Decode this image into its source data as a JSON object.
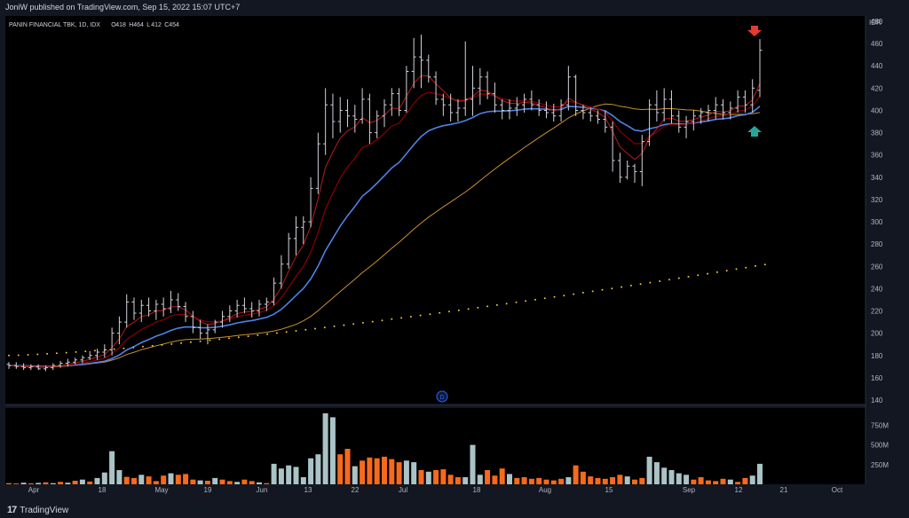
{
  "header": {
    "published": "JoniW published on TradingView.com, Sep 15, 2022 15:07 UTC+7"
  },
  "legend": {
    "symbol": "PANIN FINANCIAL TBK, 1D, IDX",
    "ohlc": [
      {
        "k": "O",
        "v": "418"
      },
      {
        "k": "H",
        "v": "464"
      },
      {
        "k": "L",
        "v": "412"
      },
      {
        "k": "C",
        "v": "454"
      }
    ]
  },
  "footer": {
    "brand": "TradingView",
    "logo": "17"
  },
  "colors": {
    "background": "#000000",
    "frame": "#131722",
    "bar": "#d1d4dc",
    "ema_fast": "#b71c1c",
    "ema_mid": "#8b0000",
    "ema_blue": "#4e82e8",
    "ma_orange": "#c8912e",
    "ma_dotted": "#f0c040",
    "vol_up": "#a9c3c7",
    "vol_down": "#f56a1c",
    "arrow_red": "#e53935",
    "arrow_green": "#26a69a"
  },
  "marker": {
    "label": "D"
  },
  "chart_data": {
    "type": "ohlc",
    "currency": "IDR",
    "y_ticks": [
      "480",
      "460",
      "440",
      "420",
      "400",
      "380",
      "360",
      "340",
      "320",
      "300",
      "280",
      "260",
      "240",
      "220",
      "200",
      "180",
      "160",
      "140"
    ],
    "ylim": [
      140,
      480
    ],
    "volume_ticks": [
      "750M",
      "500M",
      "250M"
    ],
    "volume_ylim": [
      0,
      900
    ],
    "x_ticks": [
      "Apr",
      "18",
      "May",
      "19",
      "Jun",
      "13",
      "22",
      "Jul",
      "18",
      "Aug",
      "15",
      "Sep",
      "12",
      "21",
      "Oct"
    ],
    "annotations": [
      {
        "type": "arrow-down",
        "color": "red",
        "near": "last bar high"
      },
      {
        "type": "arrow-up",
        "color": "green",
        "near": "moving averages"
      }
    ],
    "ohlc": [
      [
        172,
        174,
        168,
        171
      ],
      [
        171,
        174,
        168,
        170
      ],
      [
        170,
        173,
        167,
        169
      ],
      [
        169,
        172,
        167,
        170
      ],
      [
        170,
        172,
        167,
        168
      ],
      [
        168,
        171,
        166,
        169
      ],
      [
        169,
        173,
        167,
        171
      ],
      [
        171,
        175,
        169,
        173
      ],
      [
        173,
        177,
        170,
        174
      ],
      [
        174,
        178,
        172,
        176
      ],
      [
        176,
        180,
        173,
        178
      ],
      [
        178,
        184,
        176,
        180
      ],
      [
        180,
        186,
        176,
        183
      ],
      [
        183,
        190,
        178,
        185
      ],
      [
        185,
        205,
        180,
        200
      ],
      [
        200,
        215,
        190,
        210
      ],
      [
        210,
        235,
        205,
        228
      ],
      [
        228,
        232,
        212,
        218
      ],
      [
        218,
        230,
        210,
        225
      ],
      [
        225,
        232,
        215,
        220
      ],
      [
        220,
        230,
        212,
        226
      ],
      [
        226,
        232,
        215,
        222
      ],
      [
        222,
        238,
        218,
        230
      ],
      [
        230,
        236,
        220,
        224
      ],
      [
        224,
        228,
        210,
        215
      ],
      [
        215,
        220,
        200,
        205
      ],
      [
        205,
        212,
        195,
        200
      ],
      [
        200,
        208,
        190,
        203
      ],
      [
        203,
        212,
        200,
        210
      ],
      [
        210,
        220,
        205,
        215
      ],
      [
        215,
        225,
        210,
        220
      ],
      [
        220,
        230,
        214,
        225
      ],
      [
        225,
        232,
        218,
        222
      ],
      [
        222,
        228,
        214,
        220
      ],
      [
        220,
        230,
        215,
        226
      ],
      [
        226,
        232,
        220,
        228
      ],
      [
        228,
        250,
        225,
        245
      ],
      [
        245,
        270,
        240,
        262
      ],
      [
        262,
        290,
        258,
        285
      ],
      [
        285,
        305,
        270,
        295
      ],
      [
        295,
        305,
        280,
        300
      ],
      [
        300,
        340,
        295,
        330
      ],
      [
        330,
        380,
        325,
        370
      ],
      [
        370,
        420,
        360,
        405
      ],
      [
        405,
        415,
        375,
        390
      ],
      [
        390,
        412,
        380,
        400
      ],
      [
        400,
        410,
        385,
        395
      ],
      [
        395,
        405,
        380,
        392
      ],
      [
        392,
        420,
        388,
        410
      ],
      [
        410,
        415,
        370,
        380
      ],
      [
        380,
        400,
        375,
        395
      ],
      [
        395,
        410,
        385,
        405
      ],
      [
        405,
        420,
        395,
        415
      ],
      [
        415,
        420,
        395,
        400
      ],
      [
        400,
        440,
        398,
        435
      ],
      [
        435,
        465,
        420,
        448
      ],
      [
        448,
        468,
        420,
        445
      ],
      [
        445,
        450,
        425,
        430
      ],
      [
        430,
        435,
        405,
        410
      ],
      [
        410,
        415,
        395,
        405
      ],
      [
        405,
        415,
        390,
        398
      ],
      [
        398,
        410,
        390,
        402
      ],
      [
        402,
        462,
        395,
        410
      ],
      [
        410,
        440,
        395,
        420
      ],
      [
        420,
        438,
        405,
        430
      ],
      [
        430,
        435,
        410,
        415
      ],
      [
        415,
        425,
        398,
        405
      ],
      [
        405,
        410,
        392,
        400
      ],
      [
        400,
        410,
        392,
        402
      ],
      [
        402,
        412,
        395,
        405
      ],
      [
        405,
        415,
        398,
        410
      ],
      [
        410,
        418,
        400,
        405
      ],
      [
        405,
        410,
        395,
        400
      ],
      [
        400,
        408,
        393,
        398
      ],
      [
        398,
        406,
        390,
        395
      ],
      [
        395,
        410,
        390,
        405
      ],
      [
        405,
        440,
        400,
        430
      ],
      [
        430,
        432,
        395,
        400
      ],
      [
        400,
        405,
        392,
        398
      ],
      [
        398,
        402,
        390,
        395
      ],
      [
        395,
        400,
        388,
        392
      ],
      [
        392,
        400,
        380,
        385
      ],
      [
        385,
        390,
        345,
        355
      ],
      [
        355,
        362,
        335,
        340
      ],
      [
        340,
        355,
        338,
        350
      ],
      [
        350,
        352,
        335,
        345
      ],
      [
        345,
        378,
        332,
        372
      ],
      [
        372,
        410,
        368,
        405
      ],
      [
        405,
        418,
        390,
        398
      ],
      [
        398,
        420,
        390,
        410
      ],
      [
        410,
        418,
        388,
        395
      ],
      [
        395,
        400,
        380,
        385
      ],
      [
        385,
        395,
        375,
        390
      ],
      [
        390,
        400,
        382,
        395
      ],
      [
        395,
        402,
        388,
        398
      ],
      [
        398,
        405,
        390,
        400
      ],
      [
        400,
        412,
        392,
        405
      ],
      [
        405,
        410,
        392,
        398
      ],
      [
        398,
        408,
        392,
        402
      ],
      [
        402,
        418,
        398,
        412
      ],
      [
        412,
        418,
        398,
        405
      ],
      [
        405,
        428,
        398,
        420
      ],
      [
        418,
        464,
        412,
        454
      ]
    ],
    "volume": [
      [
        15,
        "down"
      ],
      [
        10,
        "down"
      ],
      [
        20,
        "up"
      ],
      [
        12,
        "down"
      ],
      [
        18,
        "up"
      ],
      [
        25,
        "down"
      ],
      [
        15,
        "up"
      ],
      [
        30,
        "down"
      ],
      [
        20,
        "up"
      ],
      [
        45,
        "down"
      ],
      [
        60,
        "up"
      ],
      [
        35,
        "down"
      ],
      [
        80,
        "up"
      ],
      [
        150,
        "up"
      ],
      [
        420,
        "up"
      ],
      [
        180,
        "up"
      ],
      [
        95,
        "down"
      ],
      [
        80,
        "down"
      ],
      [
        120,
        "up"
      ],
      [
        100,
        "down"
      ],
      [
        40,
        "down"
      ],
      [
        110,
        "down"
      ],
      [
        140,
        "up"
      ],
      [
        120,
        "down"
      ],
      [
        130,
        "down"
      ],
      [
        60,
        "down"
      ],
      [
        50,
        "up"
      ],
      [
        45,
        "down"
      ],
      [
        80,
        "up"
      ],
      [
        60,
        "down"
      ],
      [
        40,
        "down"
      ],
      [
        30,
        "up"
      ],
      [
        60,
        "down"
      ],
      [
        40,
        "down"
      ],
      [
        25,
        "up"
      ],
      [
        15,
        "down"
      ],
      [
        260,
        "up"
      ],
      [
        200,
        "up"
      ],
      [
        240,
        "up"
      ],
      [
        220,
        "up"
      ],
      [
        90,
        "up"
      ],
      [
        330,
        "up"
      ],
      [
        380,
        "up"
      ],
      [
        900,
        "up"
      ],
      [
        850,
        "up"
      ],
      [
        380,
        "down"
      ],
      [
        450,
        "down"
      ],
      [
        230,
        "up"
      ],
      [
        300,
        "down"
      ],
      [
        340,
        "down"
      ],
      [
        330,
        "down"
      ],
      [
        350,
        "down"
      ],
      [
        320,
        "down"
      ],
      [
        280,
        "down"
      ],
      [
        300,
        "up"
      ],
      [
        280,
        "up"
      ],
      [
        180,
        "down"
      ],
      [
        160,
        "up"
      ],
      [
        180,
        "down"
      ],
      [
        190,
        "down"
      ],
      [
        120,
        "down"
      ],
      [
        90,
        "down"
      ],
      [
        90,
        "up"
      ],
      [
        500,
        "up"
      ],
      [
        120,
        "up"
      ],
      [
        180,
        "down"
      ],
      [
        110,
        "down"
      ],
      [
        200,
        "down"
      ],
      [
        130,
        "up"
      ],
      [
        80,
        "down"
      ],
      [
        90,
        "down"
      ],
      [
        70,
        "down"
      ],
      [
        80,
        "down"
      ],
      [
        60,
        "down"
      ],
      [
        50,
        "down"
      ],
      [
        70,
        "down"
      ],
      [
        90,
        "up"
      ],
      [
        240,
        "down"
      ],
      [
        160,
        "down"
      ],
      [
        100,
        "down"
      ],
      [
        80,
        "down"
      ],
      [
        70,
        "down"
      ],
      [
        90,
        "down"
      ],
      [
        120,
        "down"
      ],
      [
        100,
        "up"
      ],
      [
        60,
        "down"
      ],
      [
        80,
        "down"
      ],
      [
        350,
        "up"
      ],
      [
        280,
        "up"
      ],
      [
        210,
        "up"
      ],
      [
        180,
        "up"
      ],
      [
        140,
        "up"
      ],
      [
        120,
        "up"
      ],
      [
        60,
        "down"
      ],
      [
        90,
        "down"
      ],
      [
        50,
        "down"
      ],
      [
        40,
        "down"
      ],
      [
        70,
        "down"
      ],
      [
        60,
        "up"
      ],
      [
        30,
        "down"
      ],
      [
        80,
        "down"
      ],
      [
        110,
        "up"
      ],
      [
        260,
        "up"
      ]
    ],
    "ma_dotted": [
      [
        0,
        180
      ],
      [
        103,
        262
      ]
    ]
  }
}
